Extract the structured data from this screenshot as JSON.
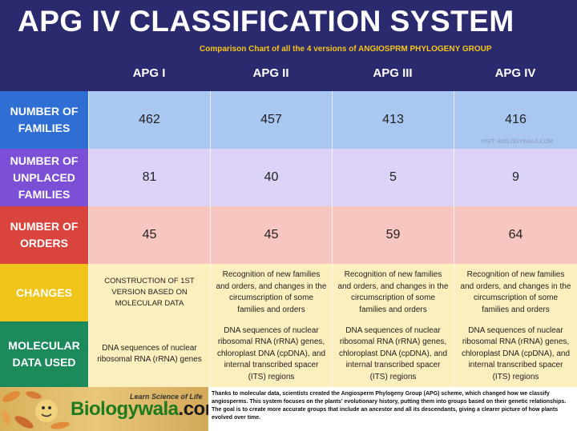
{
  "header": {
    "title": "APG IV CLASSIFICATION SYSTEM",
    "subtitle": "Comparison Chart of all the 4 versions of  ANGIOSPRM PHYLOGENY GROUP"
  },
  "columns": [
    "APG I",
    "APG II",
    "APG III",
    "APG IV"
  ],
  "rows": [
    {
      "label": "NUMBER OF FAMILIES",
      "values": [
        "462",
        "457",
        "413",
        "416"
      ]
    },
    {
      "label": "NUMBER OF UNPLACED FAMILIES",
      "values": [
        "81",
        "40",
        "5",
        "9"
      ]
    },
    {
      "label": "NUMBER OF ORDERS",
      "values": [
        "45",
        "45",
        "59",
        "64"
      ]
    },
    {
      "label": "CHANGES",
      "values": [
        "CONSTRUCTION OF 1ST VERSION BASED ON MOLECULAR DATA",
        "Recognition of new families and orders, and changes in the circumscription of some families and orders",
        "Recognition of new families and orders, and changes in the circumscription of some families and orders",
        "Recognition of new families and orders, and changes in the circumscription of some families and orders"
      ]
    },
    {
      "label": "MOLECULAR DATA USED",
      "values": [
        "DNA sequences of nuclear ribosomal RNA (rRNA) genes",
        "DNA sequences of nuclear ribosomal RNA (rRNA) genes, chloroplast DNA (cpDNA), and internal transcribed spacer (ITS) regions",
        "DNA sequences of nuclear ribosomal RNA (rRNA) genes, chloroplast DNA (cpDNA), and internal transcribed spacer (ITS) regions",
        "DNA sequences of nuclear ribosomal RNA (rRNA) genes, chloroplast DNA (cpDNA), and internal transcribed spacer (ITS) regions"
      ]
    }
  ],
  "watermark": "VISIT: BIOLOGYWALA.COM",
  "footer": {
    "logo_tagline": "Learn Science of Life",
    "logo_name_main": "Biologywala",
    "logo_name_domain": ".com",
    "description": "Thanks to molecular data, scientists created the Angiosperm Phylogeny Group (APG) scheme, which changed how we classify angiosperms. This system focuses on the plants' evolutionary history, putting them into groups based on their genetic relationships.  The goal is to create more accurate groups that include an ancestor and all its descendants, giving a clearer picture of how plants evolved over time."
  },
  "colors": {
    "header_bg": "#2b2a6e",
    "subtitle": "#f5c518",
    "families": "#2f6fd4",
    "unplaced": "#7b4fd6",
    "orders": "#d9443c",
    "changes": "#f0c419",
    "molecular": "#1d8a5b"
  }
}
